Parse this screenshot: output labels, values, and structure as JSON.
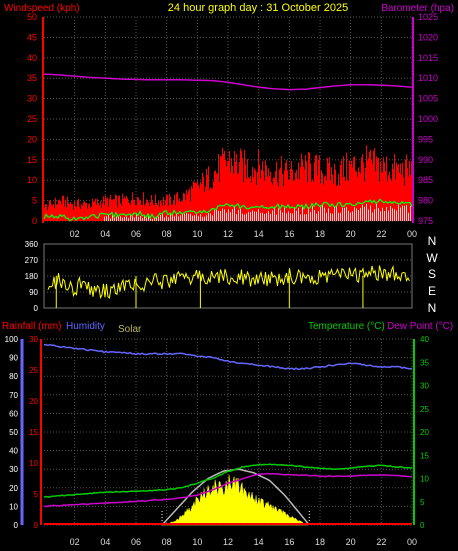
{
  "header": {
    "title": "24 hour graph day : 31 October 2025",
    "left_label": "Windspeed (kph)",
    "right_label": "Barometer (hpa)"
  },
  "colors": {
    "background": "#000000",
    "grid": "#555555",
    "title": "#ffff00",
    "windspeed": "#ff0000",
    "gust": "#ff0000",
    "avg_wind": "#00ff00",
    "barometer": "#cc00cc",
    "direction": "#ffff00",
    "rainfall": "#ff0000",
    "humidity": "#6666ff",
    "solar_theoretical": "#bbbbbb",
    "solar": "#ffff00",
    "temperature": "#00cc00",
    "dewpoint": "#cc00cc",
    "hour_ticks": "#cccccc",
    "compass": "#ffffff"
  },
  "chart_data": [
    {
      "type": "area",
      "panel": "wind-barometer",
      "x_ticks": [
        "02",
        "04",
        "06",
        "08",
        "10",
        "12",
        "14",
        "16",
        "18",
        "20",
        "22",
        "00"
      ],
      "y_left": {
        "label": "Windspeed (kph)",
        "range": [
          0,
          50
        ],
        "ticks": [
          "0",
          "5",
          "10",
          "15",
          "20",
          "25",
          "30",
          "35",
          "40",
          "45",
          "50"
        ]
      },
      "y_right": {
        "label": "Barometer (hpa)",
        "range": [
          975,
          1025
        ],
        "ticks": [
          "975",
          "980",
          "985",
          "990",
          "995",
          "1000",
          "1005",
          "1010",
          "1015",
          "1020",
          "1025"
        ]
      },
      "grid": true,
      "series": [
        {
          "name": "Barometer",
          "axis": "right",
          "x": [
            0,
            1,
            2,
            3,
            4,
            5,
            6,
            7,
            8,
            9,
            10,
            11,
            12,
            13,
            14,
            15,
            16,
            17,
            18,
            19,
            20,
            21,
            22,
            23,
            24
          ],
          "values": [
            1011,
            1010.8,
            1010.5,
            1010.2,
            1010,
            1009.8,
            1009.7,
            1009.6,
            1009.6,
            1009.6,
            1009.5,
            1009.4,
            1009,
            1008.4,
            1007.8,
            1007.4,
            1007.2,
            1007.3,
            1007.7,
            1008.1,
            1008.4,
            1008.4,
            1008.3,
            1008.1,
            1007.8
          ]
        },
        {
          "name": "Windspeed (gust)",
          "axis": "left",
          "x": [
            0,
            1,
            2,
            3,
            4,
            5,
            6,
            7,
            8,
            9,
            10,
            11,
            12,
            13,
            14,
            15,
            16,
            17,
            18,
            19,
            20,
            21,
            22,
            23,
            24
          ],
          "values": [
            4,
            6,
            5,
            5,
            6,
            6,
            7,
            6,
            6,
            7,
            10,
            14,
            18,
            16,
            16,
            15,
            14,
            16,
            15,
            14,
            16,
            17,
            16,
            15,
            15
          ]
        },
        {
          "name": "Windspeed (avg)",
          "axis": "left",
          "x": [
            0,
            1,
            2,
            3,
            4,
            5,
            6,
            7,
            8,
            9,
            10,
            11,
            12,
            13,
            14,
            15,
            16,
            17,
            18,
            19,
            20,
            21,
            22,
            23,
            24
          ],
          "values": [
            1,
            1,
            0.5,
            1,
            1.5,
            1.5,
            2,
            1,
            2,
            2,
            2,
            3,
            4,
            3.5,
            3.5,
            3.5,
            3.5,
            3.5,
            4,
            4,
            4,
            4.5,
            5,
            4.5,
            4
          ]
        }
      ]
    },
    {
      "type": "scatter",
      "panel": "wind-direction",
      "y_range": [
        0,
        360
      ],
      "y_ticks": [
        "0",
        "90",
        "180",
        "270",
        "360"
      ],
      "compass": [
        "N",
        "W",
        "S",
        "E",
        "N"
      ],
      "series": [
        {
          "name": "Direction",
          "x": [
            0,
            0.5,
            1,
            1.5,
            2,
            2.5,
            3,
            3.5,
            4,
            4.5,
            5,
            5.5,
            6,
            6.5,
            7,
            7.5,
            8,
            8.5,
            9,
            9.5,
            10,
            10.5,
            11,
            11.5,
            12,
            12.5,
            13,
            13.5,
            14,
            14.5,
            15,
            15.5,
            16,
            16.5,
            17,
            17.5,
            18,
            18.5,
            19,
            19.5,
            20,
            20.5,
            21,
            21.5,
            22,
            22.5,
            23,
            23.5,
            24
          ],
          "values": [
            150,
            130,
            160,
            120,
            110,
            150,
            100,
            95,
            90,
            110,
            130,
            150,
            140,
            120,
            160,
            140,
            150,
            150,
            170,
            160,
            175,
            180,
            165,
            175,
            180,
            170,
            175,
            165,
            170,
            160,
            165,
            170,
            180,
            175,
            160,
            175,
            175,
            185,
            180,
            190,
            200,
            180,
            190,
            200,
            195,
            185,
            200,
            190,
            185
          ]
        }
      ]
    },
    {
      "type": "line",
      "panel": "rain-humidity-solar-temperature",
      "x_ticks": [
        "02",
        "04",
        "06",
        "08",
        "10",
        "12",
        "14",
        "16",
        "18",
        "20",
        "22",
        "00"
      ],
      "left_labels": {
        "rainfall": "Rainfall (mm)",
        "humidity": "Humidity",
        "solar": "Solar"
      },
      "right_labels": {
        "temperature": "Temperature (°C)",
        "dewpoint": "Dew Point (°C)"
      },
      "humidity_axis": {
        "range": [
          0,
          100
        ],
        "ticks": [
          "0",
          "10",
          "20",
          "30",
          "40",
          "50",
          "60",
          "70",
          "80",
          "90",
          "100"
        ]
      },
      "rain_axis": {
        "range": [
          0,
          30
        ],
        "ticks": [
          "0",
          "5",
          "10",
          "15",
          "20",
          "25",
          "30"
        ]
      },
      "temp_axis": {
        "range": [
          0,
          40
        ],
        "ticks": [
          "0",
          "5",
          "10",
          "15",
          "20",
          "25",
          "30",
          "35",
          "40"
        ]
      },
      "grid": true,
      "series": [
        {
          "name": "Humidity",
          "axis": "humidity",
          "x": [
            0,
            1,
            2,
            3,
            4,
            5,
            6,
            7,
            8,
            9,
            10,
            11,
            12,
            13,
            14,
            15,
            16,
            17,
            18,
            19,
            20,
            21,
            22,
            23,
            24
          ],
          "values": [
            97,
            96,
            95,
            94,
            93,
            93,
            92,
            92,
            92,
            92,
            91,
            90,
            88,
            87,
            86,
            85,
            84,
            84,
            85,
            86,
            87,
            86,
            85,
            85,
            84
          ]
        },
        {
          "name": "Temperature",
          "axis": "temp",
          "x": [
            0,
            1,
            2,
            3,
            4,
            5,
            6,
            7,
            8,
            9,
            10,
            11,
            12,
            13,
            14,
            15,
            16,
            17,
            18,
            19,
            20,
            21,
            22,
            23,
            24
          ],
          "values": [
            6,
            6.3,
            6.5,
            6.8,
            7,
            7.2,
            7.3,
            7.4,
            7.6,
            8,
            9,
            10,
            11.5,
            12.5,
            13,
            13,
            12.8,
            12.5,
            12.2,
            12,
            12.2,
            12.6,
            12.8,
            12.5,
            12.2
          ]
        },
        {
          "name": "Dew Point",
          "axis": "temp",
          "x": [
            0,
            1,
            2,
            3,
            4,
            5,
            6,
            7,
            8,
            9,
            10,
            11,
            12,
            13,
            14,
            15,
            16,
            17,
            18,
            19,
            20,
            21,
            22,
            23,
            24
          ],
          "values": [
            4,
            4.2,
            4.4,
            4.5,
            4.7,
            4.9,
            5.1,
            5.3,
            5.5,
            5.8,
            6.5,
            7.5,
            9,
            10,
            11,
            11,
            10.8,
            10.7,
            10.5,
            10.5,
            10.5,
            10.7,
            10.8,
            10.6,
            10.4
          ]
        },
        {
          "name": "Solar (theoretical)",
          "axis": "humidity",
          "x": [
            7.7,
            8.7,
            9.7,
            10.7,
            11.7,
            12.7,
            13.7,
            14.7,
            15.7,
            16.7,
            17.3
          ],
          "values": [
            0,
            9,
            18,
            25,
            29,
            30,
            28,
            24,
            16,
            6,
            0
          ]
        },
        {
          "name": "Solar",
          "axis": "humidity",
          "x": [
            7.7,
            8.2,
            8.7,
            9.2,
            9.7,
            10.2,
            10.7,
            11.2,
            11.7,
            12.2,
            12.7,
            13.2,
            13.7,
            14.2,
            14.7,
            15.2,
            15.7,
            16.2,
            16.7,
            17.2
          ],
          "values": [
            0,
            1,
            3,
            6,
            10,
            15,
            19,
            22,
            17,
            24,
            20,
            17,
            15,
            12,
            10,
            8,
            6,
            4,
            2,
            0
          ]
        },
        {
          "name": "Rainfall",
          "axis": "rain",
          "x": [
            0,
            24
          ],
          "values": [
            0,
            0
          ]
        }
      ]
    }
  ]
}
